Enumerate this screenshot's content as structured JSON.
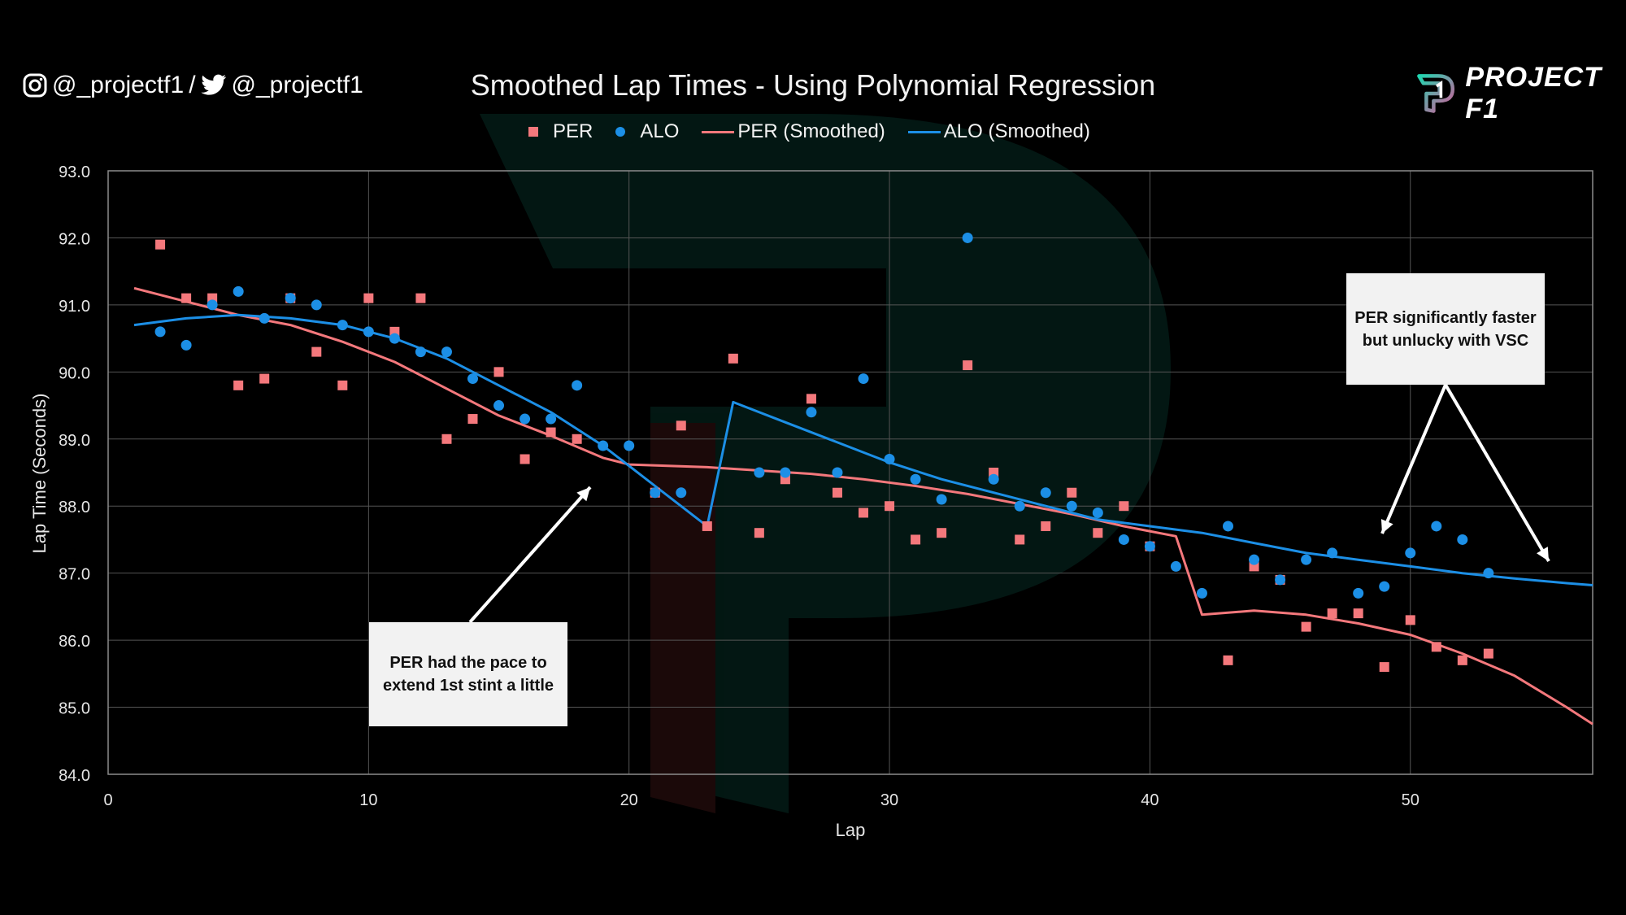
{
  "header": {
    "social_handle_1": "@_projectf1",
    "separator": "/",
    "social_handle_2": "@_projectf1",
    "brand_name": "PROJECT F1"
  },
  "colors": {
    "per": "#f4787c",
    "alo": "#1c8fe6",
    "grid": "#555555",
    "axis": "#8c8c8c"
  },
  "annotations": {
    "left_callout": "PER had the pace to extend 1st stint a little",
    "right_callout": "PER significantly faster but unlucky with VSC"
  },
  "chart_data": {
    "type": "scatter",
    "title": "Smoothed Lap Times - Using Polynomial Regression",
    "xlabel": "Lap",
    "ylabel": "Lap Time (Seconds)",
    "xlim": [
      0,
      57
    ],
    "ylim": [
      84.0,
      93.0
    ],
    "x_ticks": [
      0,
      10,
      20,
      30,
      40,
      50
    ],
    "y_ticks": [
      "84.0",
      "85.0",
      "86.0",
      "87.0",
      "88.0",
      "89.0",
      "90.0",
      "91.0",
      "92.0",
      "93.0"
    ],
    "grid": true,
    "legend_position": "top-center",
    "legend": [
      "PER",
      "ALO",
      "PER (Smoothed)",
      "ALO (Smoothed)"
    ],
    "series": [
      {
        "name": "PER",
        "kind": "scatter",
        "marker": "square",
        "points": [
          [
            2,
            91.9
          ],
          [
            3,
            91.1
          ],
          [
            4,
            91.1
          ],
          [
            5,
            89.8
          ],
          [
            6,
            89.9
          ],
          [
            7,
            91.1
          ],
          [
            8,
            90.3
          ],
          [
            9,
            89.8
          ],
          [
            10,
            91.1
          ],
          [
            11,
            90.6
          ],
          [
            12,
            91.1
          ],
          [
            13,
            89.0
          ],
          [
            14,
            89.3
          ],
          [
            15,
            90.0
          ],
          [
            16,
            88.7
          ],
          [
            17,
            89.1
          ],
          [
            18,
            89.0
          ],
          [
            21,
            88.2
          ],
          [
            22,
            89.2
          ],
          [
            23,
            87.7
          ],
          [
            24,
            90.2
          ],
          [
            25,
            87.6
          ],
          [
            26,
            88.4
          ],
          [
            27,
            89.6
          ],
          [
            28,
            88.2
          ],
          [
            29,
            87.9
          ],
          [
            30,
            88.0
          ],
          [
            31,
            87.5
          ],
          [
            32,
            87.6
          ],
          [
            33,
            90.1
          ],
          [
            34,
            88.5
          ],
          [
            35,
            87.5
          ],
          [
            36,
            87.7
          ],
          [
            37,
            88.2
          ],
          [
            38,
            87.6
          ],
          [
            39,
            88.0
          ],
          [
            40,
            87.4
          ],
          [
            43,
            85.7
          ],
          [
            44,
            87.1
          ],
          [
            45,
            86.9
          ],
          [
            46,
            86.2
          ],
          [
            47,
            86.4
          ],
          [
            48,
            86.4
          ],
          [
            49,
            85.6
          ],
          [
            50,
            86.3
          ],
          [
            51,
            85.9
          ],
          [
            52,
            85.7
          ],
          [
            53,
            85.8
          ]
        ]
      },
      {
        "name": "ALO",
        "kind": "scatter",
        "marker": "circle",
        "points": [
          [
            2,
            90.6
          ],
          [
            3,
            90.4
          ],
          [
            4,
            91.0
          ],
          [
            5,
            91.2
          ],
          [
            6,
            90.8
          ],
          [
            7,
            91.1
          ],
          [
            8,
            91.0
          ],
          [
            9,
            90.7
          ],
          [
            10,
            90.6
          ],
          [
            11,
            90.5
          ],
          [
            12,
            90.3
          ],
          [
            13,
            90.3
          ],
          [
            14,
            89.9
          ],
          [
            15,
            89.5
          ],
          [
            16,
            89.3
          ],
          [
            17,
            89.3
          ],
          [
            18,
            89.8
          ],
          [
            19,
            88.9
          ],
          [
            20,
            88.9
          ],
          [
            21,
            88.2
          ],
          [
            22,
            88.2
          ],
          [
            25,
            88.5
          ],
          [
            26,
            88.5
          ],
          [
            27,
            89.4
          ],
          [
            28,
            88.5
          ],
          [
            29,
            89.9
          ],
          [
            30,
            88.7
          ],
          [
            31,
            88.4
          ],
          [
            32,
            88.1
          ],
          [
            33,
            92.0
          ],
          [
            34,
            88.4
          ],
          [
            35,
            88.0
          ],
          [
            36,
            88.2
          ],
          [
            37,
            88.0
          ],
          [
            38,
            87.9
          ],
          [
            39,
            87.5
          ],
          [
            40,
            87.4
          ],
          [
            41,
            87.1
          ],
          [
            42,
            86.7
          ],
          [
            43,
            87.7
          ],
          [
            44,
            87.2
          ],
          [
            45,
            86.9
          ],
          [
            46,
            87.2
          ],
          [
            47,
            87.3
          ],
          [
            48,
            86.7
          ],
          [
            49,
            86.8
          ],
          [
            50,
            87.3
          ],
          [
            51,
            87.7
          ],
          [
            52,
            87.5
          ],
          [
            53,
            87.0
          ]
        ]
      },
      {
        "name": "PER (Smoothed)",
        "kind": "line",
        "points": [
          [
            1,
            91.25
          ],
          [
            3,
            91.05
          ],
          [
            5,
            90.85
          ],
          [
            7,
            90.7
          ],
          [
            9,
            90.45
          ],
          [
            11,
            90.15
          ],
          [
            13,
            89.75
          ],
          [
            15,
            89.35
          ],
          [
            17,
            89.05
          ],
          [
            19,
            88.72
          ],
          [
            20,
            88.62
          ],
          [
            23,
            88.58
          ],
          [
            25,
            88.53
          ],
          [
            27,
            88.48
          ],
          [
            29,
            88.4
          ],
          [
            31,
            88.3
          ],
          [
            33,
            88.18
          ],
          [
            35,
            88.03
          ],
          [
            37,
            87.88
          ],
          [
            39,
            87.7
          ],
          [
            41,
            87.55
          ],
          [
            42,
            86.38
          ],
          [
            44,
            86.44
          ],
          [
            46,
            86.38
          ],
          [
            48,
            86.25
          ],
          [
            50,
            86.08
          ],
          [
            52,
            85.8
          ],
          [
            54,
            85.47
          ],
          [
            56,
            85.0
          ],
          [
            57,
            84.75
          ]
        ]
      },
      {
        "name": "ALO (Smoothed)",
        "kind": "line",
        "points": [
          [
            1,
            90.7
          ],
          [
            3,
            90.8
          ],
          [
            5,
            90.85
          ],
          [
            7,
            90.8
          ],
          [
            9,
            90.7
          ],
          [
            11,
            90.5
          ],
          [
            13,
            90.2
          ],
          [
            15,
            89.8
          ],
          [
            17,
            89.4
          ],
          [
            19,
            88.9
          ],
          [
            21,
            88.3
          ],
          [
            23,
            87.7
          ],
          [
            24,
            89.55
          ],
          [
            26,
            89.25
          ],
          [
            28,
            88.95
          ],
          [
            30,
            88.65
          ],
          [
            32,
            88.4
          ],
          [
            34,
            88.2
          ],
          [
            36,
            88.0
          ],
          [
            38,
            87.8
          ],
          [
            40,
            87.7
          ],
          [
            42,
            87.6
          ],
          [
            44,
            87.45
          ],
          [
            46,
            87.3
          ],
          [
            48,
            87.2
          ],
          [
            50,
            87.1
          ],
          [
            52,
            87.0
          ],
          [
            54,
            86.92
          ],
          [
            56,
            86.85
          ],
          [
            57,
            86.82
          ]
        ]
      }
    ]
  }
}
